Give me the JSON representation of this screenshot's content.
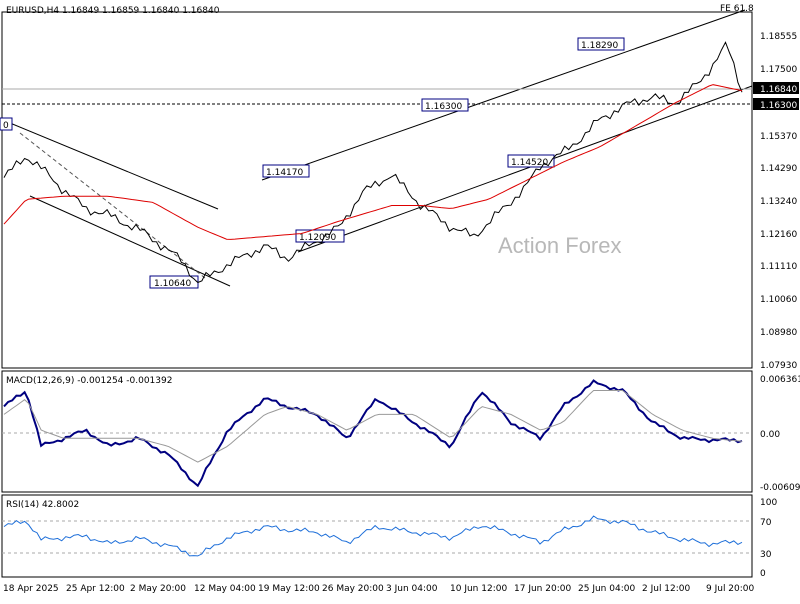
{
  "chart_data": [
    {
      "type": "line",
      "panel": "price",
      "title": "EURUSD,H4  1.16849 1.16859 1.16840 1.16840",
      "watermark": "Action Forex",
      "fib_label": "FE 61.8",
      "ylim": [
        1.0793,
        1.1927
      ],
      "y_ticks": [
        "1.18555",
        "1.17500",
        "1.16840",
        "1.16300",
        "1.15370",
        "1.14290",
        "1.13240",
        "1.12160",
        "1.11110",
        "1.10060",
        "1.08980",
        "1.07930"
      ],
      "x_ticks": [
        "18 Apr 2025",
        "25 Apr 12:00",
        "2 May 20:00",
        "12 May 04:00",
        "19 May 12:00",
        "26 May 20:00",
        "3 Jun 04:00",
        "10 Jun 12:00",
        "17 Jun 20:00",
        "25 Jun 04:00",
        "2 Jul 12:00",
        "9 Jul 20:00"
      ],
      "current_price": "1.16840",
      "support_level": "1.16300",
      "annotations": [
        {
          "label": "0",
          "value": 1.14
        },
        {
          "label": "1.10640",
          "value": 1.1064
        },
        {
          "label": "1.14170",
          "value": 1.1417
        },
        {
          "label": "1.12090",
          "value": 1.1209
        },
        {
          "label": "1.16300",
          "value": 1.163
        },
        {
          "label": "1.14520",
          "value": 1.1452
        },
        {
          "label": "1.18290",
          "value": 1.1829
        }
      ],
      "series": [
        {
          "color": "#000000",
          "anchors_x": [
            0,
            3,
            5,
            8,
            11,
            14,
            19,
            24,
            26,
            30,
            35,
            38,
            45,
            48,
            52,
            56,
            60,
            63,
            67,
            70,
            72,
            75,
            78,
            80,
            84,
            87,
            90,
            93,
            95,
            97,
            99
          ],
          "values": [
            1.14,
            1.147,
            1.143,
            1.136,
            1.13,
            1.128,
            1.122,
            1.113,
            1.106,
            1.112,
            1.118,
            1.114,
            1.124,
            1.135,
            1.141,
            1.131,
            1.124,
            1.121,
            1.13,
            1.137,
            1.144,
            1.148,
            1.154,
            1.159,
            1.164,
            1.166,
            1.164,
            1.17,
            1.176,
            1.183,
            1.168
          ]
        },
        {
          "name": "",
          "color": "#dd0000",
          "anchors_x": [
            0,
            3,
            8,
            14,
            20,
            26,
            30,
            35,
            40,
            45,
            52,
            56,
            60,
            65,
            70,
            75,
            80,
            85,
            90,
            95,
            99
          ],
          "values": [
            1.125,
            1.133,
            1.134,
            1.134,
            1.132,
            1.124,
            1.12,
            1.121,
            1.122,
            1.126,
            1.131,
            1.131,
            1.13,
            1.133,
            1.139,
            1.145,
            1.15,
            1.157,
            1.164,
            1.17,
            1.168
          ]
        }
      ]
    },
    {
      "type": "line",
      "panel": "macd",
      "title": "MACD(12,26,9) -0.001254 -0.001392",
      "ylim": [
        -0.0075,
        0.0072
      ],
      "y_ticks": [
        "0.006361",
        "0.00",
        "-0.006092"
      ],
      "series": [
        {
          "color": "#000080",
          "anchors_x": [
            0,
            3,
            5,
            8,
            11,
            14,
            18,
            22,
            26,
            30,
            35,
            38,
            42,
            46,
            50,
            55,
            60,
            64,
            68,
            72,
            75,
            79,
            83,
            87,
            91,
            95,
            99
          ],
          "values": [
            0.003,
            0.005,
            -0.002,
            -0.001,
            0.0,
            -0.002,
            -0.001,
            -0.003,
            -0.007,
            0.0,
            0.004,
            0.003,
            0.002,
            -0.001,
            0.004,
            0.001,
            -0.002,
            0.005,
            0.001,
            -0.001,
            0.003,
            0.006,
            0.005,
            0.001,
            -0.001,
            -0.0012,
            -0.00125
          ]
        },
        {
          "color": "#999999",
          "anchors_x": [
            0,
            3,
            5,
            8,
            11,
            14,
            18,
            22,
            26,
            30,
            35,
            38,
            42,
            46,
            50,
            55,
            60,
            64,
            68,
            72,
            75,
            79,
            83,
            87,
            91,
            95,
            99
          ],
          "values": [
            0.002,
            0.004,
            0.0,
            -0.001,
            -0.001,
            -0.001,
            -0.001,
            -0.002,
            -0.004,
            -0.002,
            0.002,
            0.003,
            0.002,
            0.0,
            0.002,
            0.002,
            -0.001,
            0.003,
            0.002,
            0.0,
            0.001,
            0.005,
            0.005,
            0.002,
            0.0,
            -0.001,
            -0.00139
          ]
        }
      ]
    },
    {
      "type": "line",
      "panel": "rsi",
      "title": "RSI(14) 42.8002",
      "ylim": [
        0,
        100
      ],
      "y_ticks": [
        "100",
        "70",
        "30",
        "0"
      ],
      "series": [
        {
          "color": "#1e6fd9",
          "anchors_x": [
            0,
            3,
            5,
            8,
            11,
            14,
            18,
            22,
            26,
            30,
            35,
            38,
            42,
            46,
            50,
            55,
            60,
            64,
            68,
            72,
            75,
            79,
            83,
            87,
            91,
            95,
            99
          ],
          "values": [
            62,
            70,
            45,
            48,
            50,
            40,
            47,
            38,
            24,
            48,
            62,
            58,
            55,
            42,
            62,
            55,
            48,
            64,
            54,
            42,
            57,
            72,
            68,
            55,
            45,
            40,
            43
          ]
        }
      ]
    }
  ]
}
